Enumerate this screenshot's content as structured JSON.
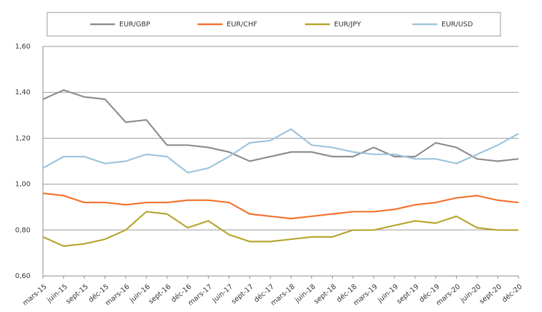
{
  "chart_data": {
    "type": "line",
    "categories": [
      "mars-15",
      "juin-15",
      "sept-15",
      "déc-15",
      "mars-16",
      "juin-16",
      "sept-16",
      "déc-16",
      "mars-17",
      "juin-17",
      "sept-17",
      "déc-17",
      "mars-18",
      "juin-18",
      "sept-18",
      "déc-18",
      "mars-19",
      "juin-19",
      "sept-19",
      "déc-19",
      "mars-20",
      "juin-20",
      "sept-20",
      "déc-20"
    ],
    "series": [
      {
        "name": "EUR/GBP",
        "color": "#8c8c8c",
        "values": [
          1.37,
          1.41,
          1.38,
          1.37,
          1.27,
          1.28,
          1.17,
          1.17,
          1.16,
          1.14,
          1.1,
          1.12,
          1.14,
          1.14,
          1.12,
          1.12,
          1.16,
          1.12,
          1.12,
          1.18,
          1.16,
          1.11,
          1.1,
          1.11
        ]
      },
      {
        "name": "EUR/CHF",
        "color": "#f4702a",
        "values": [
          0.96,
          0.95,
          0.92,
          0.92,
          0.91,
          0.92,
          0.92,
          0.93,
          0.93,
          0.92,
          0.87,
          0.86,
          0.85,
          0.86,
          0.87,
          0.88,
          0.88,
          0.89,
          0.91,
          0.92,
          0.94,
          0.95,
          0.93,
          0.92
        ]
      },
      {
        "name": "EUR/JPY",
        "color": "#b4a52a",
        "values": [
          0.77,
          0.73,
          0.74,
          0.76,
          0.8,
          0.88,
          0.87,
          0.81,
          0.84,
          0.78,
          0.75,
          0.75,
          0.76,
          0.77,
          0.77,
          0.8,
          0.8,
          0.82,
          0.84,
          0.83,
          0.86,
          0.81,
          0.8,
          0.8
        ]
      },
      {
        "name": "EUR/USD",
        "color": "#9cc3da",
        "values": [
          1.07,
          1.12,
          1.12,
          1.09,
          1.1,
          1.13,
          1.12,
          1.05,
          1.07,
          1.12,
          1.18,
          1.19,
          1.24,
          1.17,
          1.16,
          1.14,
          1.13,
          1.13,
          1.11,
          1.11,
          1.09,
          1.13,
          1.17,
          1.22
        ]
      }
    ],
    "ylim": [
      0.6,
      1.6
    ],
    "yticks": [
      {
        "value": 0.6,
        "label": "0,60"
      },
      {
        "value": 0.8,
        "label": "0,80"
      },
      {
        "value": 1.0,
        "label": "1,00"
      },
      {
        "value": 1.2,
        "label": "1,20"
      },
      {
        "value": 1.4,
        "label": "1,40"
      },
      {
        "value": 1.6,
        "label": "1,60"
      }
    ],
    "grid": true,
    "legend": "top"
  }
}
